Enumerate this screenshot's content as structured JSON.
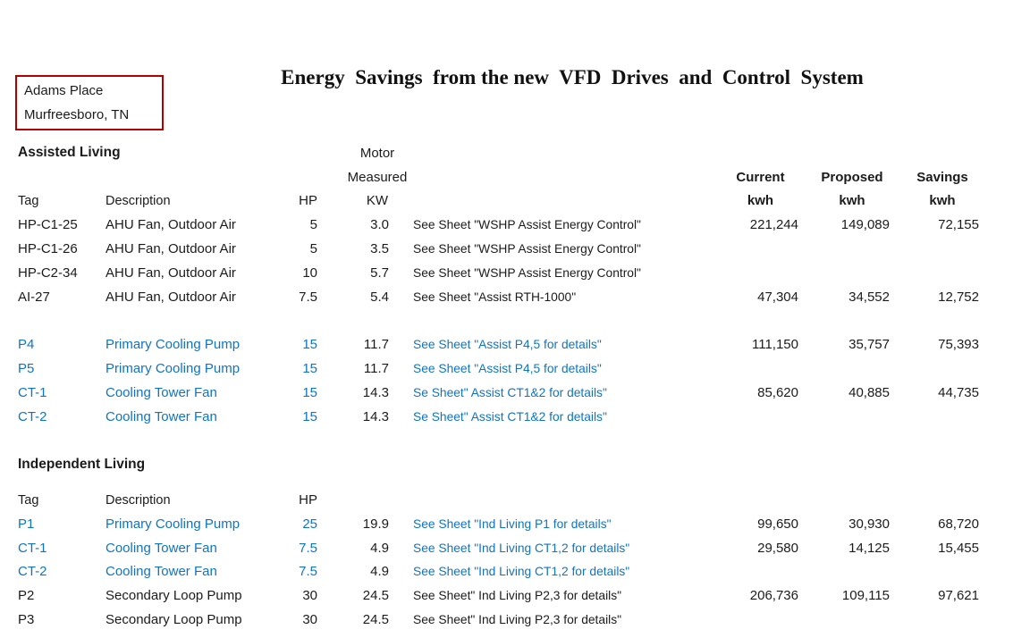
{
  "page": {
    "location_line1": "Adams Place",
    "location_line2": "Murfreesboro, TN",
    "title": "Energy  Savings  from the new  VFD  Drives  and  Control  System"
  },
  "colors": {
    "accent_blue": "#0f74c4",
    "box_red": "#b00000"
  },
  "headers": {
    "motor": "Motor",
    "measured": "Measured",
    "tag": "Tag",
    "description": "Description",
    "hp": "HP",
    "kw": "KW",
    "current": "Current",
    "proposed": "Proposed",
    "savings": "Savings",
    "kwh": "kwh"
  },
  "sections": [
    {
      "name": "Assisted Living",
      "rows": [
        {
          "tag": "HP-C1-25",
          "description": "AHU Fan, Outdoor Air",
          "hp": "5",
          "kw": "3.0",
          "note": "See Sheet \"WSHP Assist Energy Control\"",
          "current": "221,244",
          "proposed": "149,089",
          "savings": "72,155",
          "blue": false
        },
        {
          "tag": "HP-C1-26",
          "description": "AHU Fan, Outdoor Air",
          "hp": "5",
          "kw": "3.5",
          "note": "See Sheet \"WSHP Assist Energy Control\"",
          "current": "",
          "proposed": "",
          "savings": "",
          "blue": false
        },
        {
          "tag": "HP-C2-34",
          "description": "AHU Fan, Outdoor Air",
          "hp": "10",
          "kw": "5.7",
          "note": "See Sheet \"WSHP Assist Energy Control\"",
          "current": "",
          "proposed": "",
          "savings": "",
          "blue": false
        },
        {
          "tag": "AI-27",
          "description": "AHU Fan, Outdoor Air",
          "hp": "7.5",
          "kw": "5.4",
          "note": "See Sheet \"Assist RTH-1000\"",
          "current": "47,304",
          "proposed": "34,552",
          "savings": "12,752",
          "blue": false
        },
        {
          "tag": "P4",
          "description": "Primary Cooling Pump",
          "hp": "15",
          "kw": "11.7",
          "note": "See Sheet \"Assist P4,5 for details\"",
          "current": "111,150",
          "proposed": "35,757",
          "savings": "75,393",
          "blue": true
        },
        {
          "tag": "P5",
          "description": "Primary Cooling Pump",
          "hp": "15",
          "kw": "11.7",
          "note": "See Sheet \"Assist P4,5 for details\"",
          "current": "",
          "proposed": "",
          "savings": "",
          "blue": true
        },
        {
          "tag": "CT-1",
          "description": "Cooling Tower Fan",
          "hp": "15",
          "kw": "14.3",
          "note": "Se Sheet\" Assist CT1&2 for details\"",
          "current": "85,620",
          "proposed": "40,885",
          "savings": "44,735",
          "blue": true
        },
        {
          "tag": "CT-2",
          "description": "Cooling Tower Fan",
          "hp": "15",
          "kw": "14.3",
          "note": "Se Sheet\" Assist CT1&2 for details\"",
          "current": "",
          "proposed": "",
          "savings": "",
          "blue": true
        }
      ]
    },
    {
      "name": "Independent Living",
      "rows": [
        {
          "tag": "P1",
          "description": "Primary Cooling Pump",
          "hp": "25",
          "kw": "19.9",
          "note": "See Sheet \"Ind Living P1 for details\"",
          "current": "99,650",
          "proposed": "30,930",
          "savings": "68,720",
          "blue": true
        },
        {
          "tag": "CT-1",
          "description": "Cooling Tower Fan",
          "hp": "7.5",
          "kw": "4.9",
          "note": "See Sheet \"Ind Living CT1,2 for details\"",
          "current": "29,580",
          "proposed": "14,125",
          "savings": "15,455",
          "blue": true
        },
        {
          "tag": "CT-2",
          "description": "Cooling Tower Fan",
          "hp": "7.5",
          "kw": "4.9",
          "note": "See Sheet \"Ind Living CT1,2 for details\"",
          "current": "",
          "proposed": "",
          "savings": "",
          "blue": true
        },
        {
          "tag": "P2",
          "description": "Secondary Loop Pump",
          "hp": "30",
          "kw": "24.5",
          "note": "See Sheet\" Ind Living P2,3 for details\"",
          "current": "206,736",
          "proposed": "109,115",
          "savings": "97,621",
          "blue": false
        },
        {
          "tag": "P3",
          "description": "Secondary Loop Pump",
          "hp": "30",
          "kw": "24.5",
          "note": "See Sheet\" Ind Living P2,3 for details\"",
          "current": "",
          "proposed": "",
          "savings": "",
          "blue": false
        }
      ]
    }
  ]
}
